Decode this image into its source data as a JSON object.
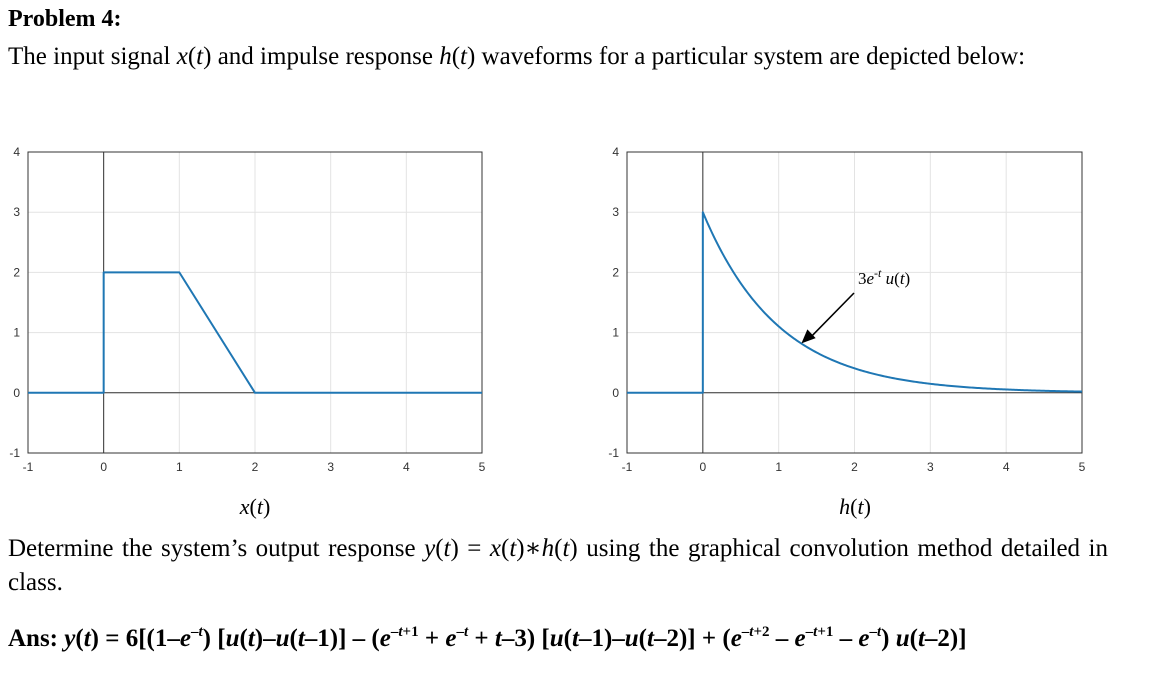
{
  "problem": {
    "title": "Problem 4:",
    "intro": "The input signal x(t) and impulse response h(t) waveforms for a particular system are depicted below:",
    "question": "Determine the system’s output response y(t) = x(t)∗h(t) using the graphical convolution method detailed in class.",
    "answer": "Ans: y(t) = 6[(1–e−t) [u(t)–u(t–1)] – (e−t+1 + e−t + t–3) [u(t–1)–u(t–2)] + (e−t+2 – e−t+1 – e−t) u(t–2)]"
  },
  "colors": {
    "line": "#1f77b4",
    "grid": "#e3e3e3",
    "axis": "#333333"
  },
  "chart_data": [
    {
      "type": "line",
      "title": "",
      "xlabel": "x(t)",
      "ylabel": "",
      "xlim": [
        -1,
        5
      ],
      "ylim": [
        -1,
        4
      ],
      "xticks": [
        -1,
        0,
        1,
        2,
        3,
        4,
        5
      ],
      "yticks": [
        -1,
        0,
        1,
        2,
        3,
        4
      ],
      "grid": true,
      "series": [
        {
          "x": [
            -1,
            0,
            0,
            1,
            2,
            5
          ],
          "y": [
            0,
            0,
            2,
            2,
            0,
            0
          ]
        }
      ]
    },
    {
      "type": "line",
      "title": "",
      "xlabel": "h(t)",
      "ylabel": "",
      "xlim": [
        -1,
        5
      ],
      "ylim": [
        -1,
        4
      ],
      "xticks": [
        -1,
        0,
        1,
        2,
        3,
        4,
        5
      ],
      "yticks": [
        -1,
        0,
        1,
        2,
        3,
        4
      ],
      "grid": true,
      "series": [
        {
          "function": "3e^-t u(t)",
          "x_from": -1,
          "x_to": 5
        }
      ],
      "annotations": [
        {
          "text": "3e-t u(t)",
          "points_to": [
            1.3,
            0.82
          ]
        }
      ]
    }
  ]
}
